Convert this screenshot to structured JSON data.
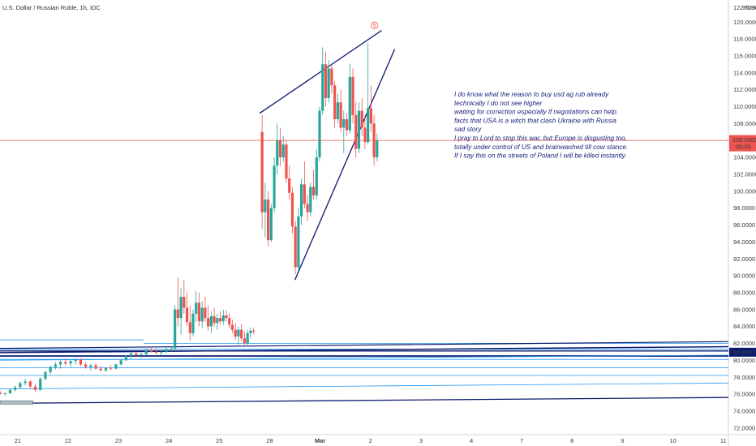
{
  "chart_data": {
    "type": "candlestick",
    "title": "U.S. Dollar / Russian Ruble, 1h, IDC",
    "currency": "RUB",
    "y_ticks": [
      72,
      74,
      76,
      78,
      80,
      82,
      84,
      86,
      88,
      90,
      92,
      94,
      96,
      98,
      100,
      102,
      104,
      106,
      108,
      110,
      112,
      114,
      116,
      118,
      120
    ],
    "y_tick_top_partial": "122.0000",
    "ylim": [
      71.2,
      122.6
    ],
    "x_ticks": [
      {
        "label": "21",
        "x": 0
      },
      {
        "label": "22",
        "x": 1
      },
      {
        "label": "23",
        "x": 2
      },
      {
        "label": "24",
        "x": 3
      },
      {
        "label": "25",
        "x": 4
      },
      {
        "label": "28",
        "x": 5
      },
      {
        "label": "Mar",
        "x": 6
      },
      {
        "label": "2",
        "x": 7
      },
      {
        "label": "3",
        "x": 8
      },
      {
        "label": "4",
        "x": 9
      },
      {
        "label": "7",
        "x": 10
      },
      {
        "label": "8",
        "x": 11
      },
      {
        "label": "9",
        "x": 12
      },
      {
        "label": "10",
        "x": 13
      },
      {
        "label": "11",
        "x": 14
      }
    ],
    "xlim": [
      -0.35,
      14.1
    ],
    "price_line": {
      "value": "106.0000",
      "countdown": "09:05",
      "y": 106.0
    },
    "level_label": {
      "value": "80.9480",
      "y": 80.948
    },
    "candles": [
      [
        -0.35,
        76.2,
        76.4,
        75.9,
        76.0
      ],
      [
        -0.25,
        76.0,
        76.2,
        75.8,
        76.1
      ],
      [
        -0.15,
        76.1,
        76.6,
        76.0,
        76.5
      ],
      [
        -0.05,
        76.5,
        77.0,
        76.3,
        76.8
      ],
      [
        0.05,
        76.8,
        77.5,
        76.6,
        77.3
      ],
      [
        0.15,
        77.3,
        77.8,
        77.0,
        77.5
      ],
      [
        0.25,
        77.5,
        77.6,
        76.6,
        76.9
      ],
      [
        0.35,
        76.9,
        77.2,
        76.2,
        76.5
      ],
      [
        0.45,
        76.5,
        78.0,
        76.4,
        77.8
      ],
      [
        0.55,
        77.8,
        78.8,
        77.6,
        78.6
      ],
      [
        0.65,
        78.6,
        79.4,
        78.3,
        79.2
      ],
      [
        0.75,
        79.2,
        79.8,
        78.9,
        79.5
      ],
      [
        0.85,
        79.5,
        80.0,
        79.0,
        79.8
      ],
      [
        0.95,
        79.8,
        80.2,
        79.3,
        79.6
      ],
      [
        1.05,
        79.6,
        80.1,
        79.2,
        79.9
      ],
      [
        1.15,
        79.9,
        80.3,
        79.5,
        80.1
      ],
      [
        1.25,
        80.1,
        80.2,
        79.3,
        79.5
      ],
      [
        1.35,
        79.5,
        79.8,
        79.0,
        79.2
      ],
      [
        1.45,
        79.2,
        79.6,
        78.8,
        79.4
      ],
      [
        1.55,
        79.4,
        79.7,
        78.9,
        79.0
      ],
      [
        1.65,
        79.0,
        79.3,
        78.7,
        78.8
      ],
      [
        1.75,
        78.8,
        79.2,
        78.6,
        79.1
      ],
      [
        1.85,
        79.1,
        79.4,
        78.8,
        79.0
      ],
      [
        1.95,
        79.0,
        79.6,
        78.9,
        79.5
      ],
      [
        2.05,
        79.5,
        80.2,
        79.4,
        80.0
      ],
      [
        2.15,
        80.0,
        80.6,
        79.9,
        80.5
      ],
      [
        2.25,
        80.5,
        81.0,
        80.2,
        80.8
      ],
      [
        2.35,
        80.8,
        81.0,
        80.4,
        80.6
      ],
      [
        2.45,
        80.6,
        80.9,
        80.3,
        80.7
      ],
      [
        2.55,
        80.7,
        81.4,
        80.6,
        81.2
      ],
      [
        2.65,
        81.2,
        81.6,
        80.9,
        81.0
      ],
      [
        2.75,
        81.0,
        81.3,
        80.7,
        80.9
      ],
      [
        2.85,
        80.9,
        81.2,
        80.6,
        81.0
      ],
      [
        2.95,
        81.0,
        81.5,
        80.8,
        81.3
      ],
      [
        3.05,
        81.3,
        81.6,
        81.0,
        81.4
      ],
      [
        3.12,
        81.4,
        86.5,
        81.2,
        86.0
      ],
      [
        3.18,
        86.0,
        89.8,
        84.0,
        85.0
      ],
      [
        3.24,
        85.0,
        88.5,
        83.0,
        87.5
      ],
      [
        3.3,
        87.5,
        89.5,
        85.5,
        86.2
      ],
      [
        3.36,
        86.2,
        88.0,
        84.0,
        84.5
      ],
      [
        3.42,
        84.5,
        86.5,
        82.3,
        83.2
      ],
      [
        3.48,
        83.2,
        86.0,
        82.8,
        85.5
      ],
      [
        3.54,
        85.5,
        88.2,
        84.5,
        86.8
      ],
      [
        3.6,
        86.8,
        88.0,
        84.0,
        84.6
      ],
      [
        3.66,
        84.6,
        87.0,
        83.8,
        86.2
      ],
      [
        3.72,
        86.2,
        87.5,
        84.5,
        85.0
      ],
      [
        3.78,
        85.0,
        86.5,
        83.5,
        84.0
      ],
      [
        3.84,
        84.0,
        85.8,
        83.2,
        85.2
      ],
      [
        3.9,
        85.2,
        86.2,
        84.0,
        84.4
      ],
      [
        3.96,
        84.4,
        85.5,
        83.6,
        85.0
      ],
      [
        4.02,
        85.0,
        85.8,
        84.2,
        84.6
      ],
      [
        4.08,
        84.6,
        86.0,
        84.2,
        85.3
      ],
      [
        4.14,
        85.3,
        85.9,
        84.6,
        85.0
      ],
      [
        4.2,
        85.0,
        85.6,
        83.8,
        84.2
      ],
      [
        4.26,
        84.2,
        84.8,
        83.2,
        83.6
      ],
      [
        4.32,
        83.6,
        84.4,
        82.4,
        82.8
      ],
      [
        4.38,
        82.8,
        84.0,
        81.8,
        83.6
      ],
      [
        4.44,
        83.6,
        84.3,
        82.2,
        82.6
      ],
      [
        4.5,
        82.6,
        83.4,
        81.8,
        82.0
      ],
      [
        4.56,
        82.0,
        83.6,
        81.6,
        83.2
      ],
      [
        4.62,
        83.2,
        83.9,
        82.6,
        83.5
      ],
      [
        4.68,
        83.5,
        83.8,
        83.1,
        83.4
      ],
      [
        4.85,
        107.0,
        109.0,
        95.5,
        97.5
      ],
      [
        4.91,
        97.5,
        101.0,
        94.5,
        99.0
      ],
      [
        4.97,
        99.0,
        100.0,
        93.5,
        94.2
      ],
      [
        5.03,
        94.2,
        98.5,
        94.0,
        98.0
      ],
      [
        5.09,
        98.0,
        104.0,
        97.5,
        103.0
      ],
      [
        5.15,
        103.0,
        108.0,
        102.0,
        106.0
      ],
      [
        5.21,
        106.0,
        107.5,
        103.0,
        104.0
      ],
      [
        5.27,
        104.0,
        106.5,
        103.5,
        105.5
      ],
      [
        5.33,
        105.5,
        106.0,
        101.0,
        101.5
      ],
      [
        5.39,
        101.5,
        103.0,
        99.0,
        99.8
      ],
      [
        5.45,
        99.8,
        100.5,
        95.0,
        95.8
      ],
      [
        5.51,
        95.8,
        96.5,
        90.2,
        91.0
      ],
      [
        5.57,
        91.0,
        98.0,
        90.5,
        97.0
      ],
      [
        5.63,
        97.0,
        101.5,
        96.0,
        100.8
      ],
      [
        5.69,
        100.8,
        103.5,
        98.0,
        98.5
      ],
      [
        5.75,
        98.5,
        99.5,
        96.5,
        97.5
      ],
      [
        5.81,
        97.5,
        101.0,
        97.0,
        100.5
      ],
      [
        5.87,
        100.5,
        102.5,
        99.0,
        99.5
      ],
      [
        5.93,
        99.5,
        105.0,
        99.0,
        104.0
      ],
      [
        5.99,
        104.0,
        110.0,
        103.5,
        109.5
      ],
      [
        6.05,
        109.5,
        117.0,
        109.0,
        115.0
      ],
      [
        6.11,
        115.0,
        116.5,
        110.0,
        111.0
      ],
      [
        6.17,
        111.0,
        115.5,
        110.5,
        114.5
      ],
      [
        6.23,
        114.5,
        115.0,
        111.5,
        112.5
      ],
      [
        6.29,
        112.5,
        113.0,
        107.5,
        108.5
      ],
      [
        6.35,
        108.5,
        111.5,
        108.0,
        110.5
      ],
      [
        6.41,
        110.5,
        112.0,
        107.0,
        107.5
      ],
      [
        6.47,
        107.5,
        109.5,
        104.5,
        108.5
      ],
      [
        6.53,
        108.5,
        109.2,
        106.5,
        107.2
      ],
      [
        6.59,
        107.2,
        115.0,
        106.8,
        113.5
      ],
      [
        6.65,
        113.5,
        114.5,
        108.0,
        109.0
      ],
      [
        6.71,
        109.0,
        110.5,
        104.0,
        105.0
      ],
      [
        6.77,
        105.0,
        110.5,
        104.5,
        109.5
      ],
      [
        6.83,
        109.5,
        111.0,
        106.5,
        107.5
      ],
      [
        6.89,
        107.5,
        109.0,
        105.0,
        105.8
      ],
      [
        6.95,
        105.8,
        117.5,
        105.5,
        109.8
      ],
      [
        7.01,
        109.8,
        112.5,
        107.0,
        108.0
      ],
      [
        7.07,
        108.0,
        109.0,
        103.0,
        104.0
      ],
      [
        7.13,
        104.0,
        106.8,
        103.5,
        106.0
      ]
    ],
    "horizontal_levels": [
      {
        "y": 82.0,
        "x0": 2.5,
        "x1": 14.1,
        "color": "#2196f3",
        "w": 0.8
      },
      {
        "y": 81.3,
        "x0": -0.35,
        "x1": 14.1,
        "color": "#2196f3",
        "w": 0.8
      },
      {
        "y": 80.1,
        "x0": -0.35,
        "x1": 14.1,
        "color": "#2196f3",
        "w": 0.8
      },
      {
        "y": 79.1,
        "x0": -0.35,
        "x1": 14.1,
        "color": "#2196f3",
        "w": 0.8
      },
      {
        "y": 78.2,
        "x0": -0.35,
        "x1": 14.1,
        "color": "#2196f3",
        "w": 0.8
      },
      {
        "y": 82.4,
        "x0": -0.35,
        "x1": 2.5,
        "color": "#2196f3",
        "w": 0.8
      },
      {
        "y": 80.5,
        "x0": -0.35,
        "x1": 14.1,
        "color": "#0d1b6e",
        "w": 1.8
      },
      {
        "y": 81.1,
        "x0": -0.35,
        "x1": 14.1,
        "color": "#0d1b6e",
        "w": 1.4
      }
    ],
    "sloped_lines": [
      {
        "x0": -0.35,
        "y0": 80.9,
        "x1": 14.1,
        "y1": 81.6,
        "color": "#0d1b6e",
        "w": 1.5
      },
      {
        "x0": -0.35,
        "y0": 81.4,
        "x1": 14.1,
        "y1": 82.2,
        "color": "#0d1b6e",
        "w": 1.2
      },
      {
        "x0": -0.35,
        "y0": 80.0,
        "x1": 14.1,
        "y1": 80.6,
        "color": "#2196f3",
        "w": 0.8
      },
      {
        "x0": -0.35,
        "y0": 76.6,
        "x1": 14.1,
        "y1": 77.3,
        "color": "#2196f3",
        "w": 0.8
      },
      {
        "x0": -0.35,
        "y0": 74.9,
        "x1": 14.1,
        "y1": 75.6,
        "color": "#0d1b6e",
        "w": 1.3
      },
      {
        "x0": 4.8,
        "y0": 109.2,
        "x1": 7.22,
        "y1": 119.0,
        "color": "#1a237e",
        "w": 1.4
      },
      {
        "x0": 5.5,
        "y0": 89.5,
        "x1": 7.48,
        "y1": 116.8,
        "color": "#1a237e",
        "w": 1.4
      }
    ],
    "wave_label": {
      "text": "5",
      "x": 7.08,
      "y": 119.6
    },
    "box": {
      "x0": -0.35,
      "x1": 0.3,
      "y": 75.0
    },
    "annotation_lines": [
      "I do know what the reason to buy usd ag rub already",
      "technically I do not see higher",
      "waiting for correction especially if negotiations can help.",
      "facts that USA is a witch that clash Ukraine with Russia",
      "sad story",
      "I pray to Lord to stop this war, but Europe is disgusting too,",
      "totally under control of US and brainwashed till cow stance.",
      "If I say this on the streets of Poland I will be killed instantly."
    ],
    "colors": {
      "up": "#26a69a",
      "down": "#ef5350",
      "price_line": "#ef5350",
      "level_label_bg": "#0d1b6e",
      "annotation": "#1a237e"
    }
  }
}
